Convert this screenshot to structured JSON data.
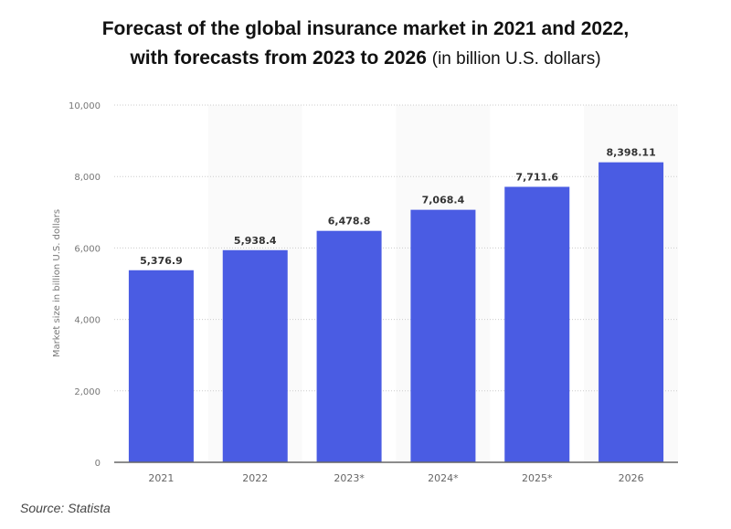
{
  "chart_data": {
    "type": "bar",
    "title_line1": "Forecast of the global insurance market in 2021 and 2022,",
    "title_line2": "with forecasts from 2023 to 2026",
    "subtitle": "(in billion U.S. dollars)",
    "ylabel": "Market size in billion U.S. dollars",
    "xlabel": "",
    "categories": [
      "2021",
      "2022",
      "2023*",
      "2024*",
      "2025*",
      "2026"
    ],
    "values": [
      5376.9,
      5938.4,
      6478.8,
      7068.4,
      7711.6,
      8398.11
    ],
    "data_labels": [
      "5,376.9",
      "5,938.4",
      "6,478.8",
      "7,068.4",
      "7,711.6",
      "8,398.11"
    ],
    "ylim": [
      0,
      10000
    ],
    "yticks": [
      0,
      2000,
      4000,
      6000,
      8000,
      10000
    ],
    "ytick_labels": [
      "0",
      "2,000",
      "4,000",
      "6,000",
      "8,000",
      "10,000"
    ],
    "grid": true,
    "bar_color": "#4a5ce3"
  },
  "source": "Source: Statista"
}
